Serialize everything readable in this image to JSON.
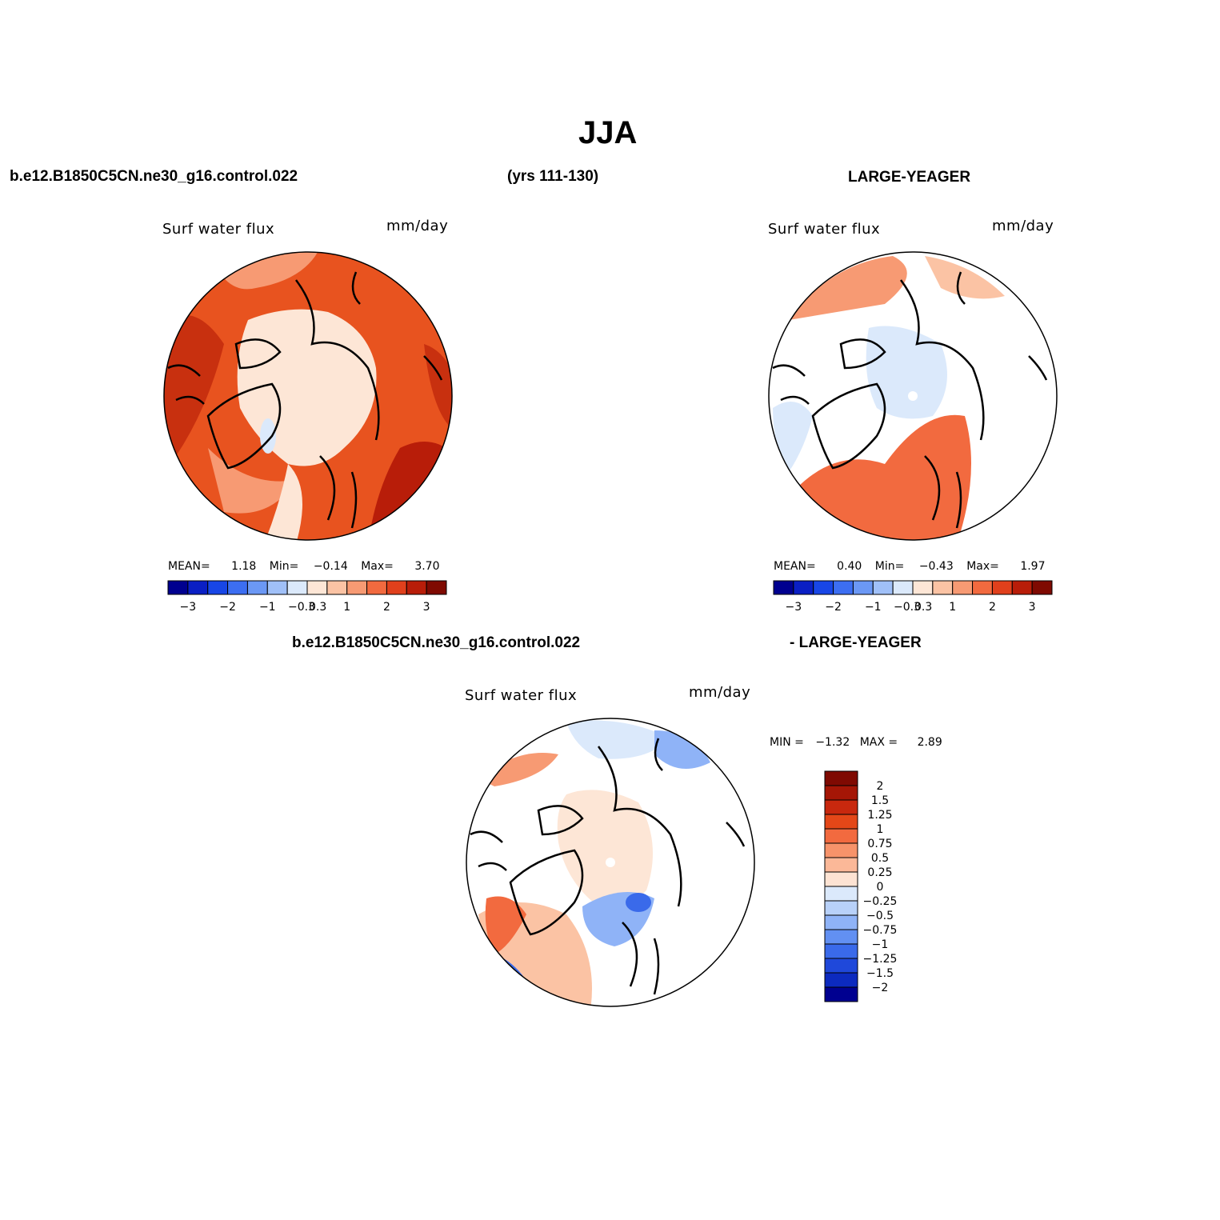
{
  "title": "JJA",
  "top_header": {
    "left": "b.e12.B1850C5CN.ne30_g16.control.022",
    "center": "(yrs 111-130)",
    "right": "LARGE-YEAGER"
  },
  "diff_header": {
    "left": "b.e12.B1850C5CN.ne30_g16.control.022",
    "right": "- LARGE-YEAGER"
  },
  "panels": {
    "p1": {
      "title": "Surf water flux",
      "units": "mm/day",
      "mean_label": "MEAN=",
      "mean": "1.18",
      "min_label": "Min=",
      "min": "−0.14",
      "max_label": "Max=",
      "max": "3.70"
    },
    "p2": {
      "title": "Surf water flux",
      "units": "mm/day",
      "mean_label": "MEAN=",
      "mean": "0.40",
      "min_label": "Min=",
      "min": "−0.43",
      "max_label": "Max=",
      "max": "1.97"
    },
    "p3": {
      "title": "Surf water flux",
      "units": "mm/day",
      "minmax_min_label": "MIN =",
      "min": "−1.32",
      "minmax_max_label": "MAX =",
      "max": "2.89"
    }
  },
  "colorbar_h": {
    "colors": [
      "#00008f",
      "#0a1fc4",
      "#1846e6",
      "#3c6ef2",
      "#6b98f5",
      "#a0c0f8",
      "#dbe9fb",
      "#fde6d6",
      "#fbc3a4",
      "#f79a73",
      "#f26a3f",
      "#e0401c",
      "#b81d09",
      "#7f0a02"
    ],
    "ticks": [
      "−3",
      "−2",
      "−1",
      "−0.3",
      "0.3",
      "1",
      "2",
      "3"
    ]
  },
  "colorbar_v": {
    "colors": [
      "#7f0a02",
      "#a51606",
      "#c8280e",
      "#e44718",
      "#f26a3f",
      "#f7936a",
      "#fbb898",
      "#fde3d3",
      "#dbe9fb",
      "#b8d1f9",
      "#8fb3f7",
      "#6290f2",
      "#3a6aea",
      "#1f48da",
      "#0c2abf",
      "#000090"
    ],
    "labels": [
      "2",
      "1.5",
      "1.25",
      "1",
      "0.75",
      "0.5",
      "0.25",
      "0",
      "−0.25",
      "−0.5",
      "−0.75",
      "−1",
      "−1.25",
      "−1.5",
      "−2"
    ]
  },
  "colors": {
    "ocean_p1": "#e8531f",
    "ocean_p1_dark": "#c8300f",
    "arctic": "#fde6d6",
    "neg_light": "#dbe9fb",
    "neg_mid": "#8fb3f7",
    "neg_dark": "#3a6aea"
  }
}
